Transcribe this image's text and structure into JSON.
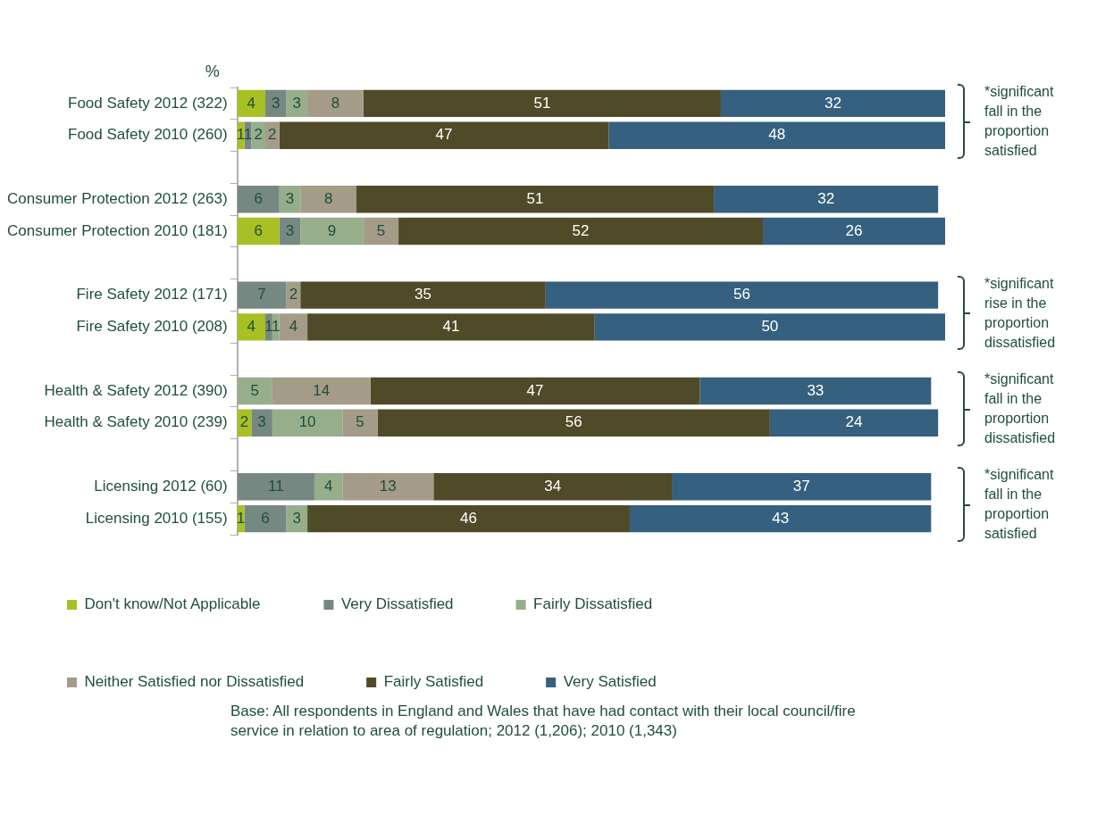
{
  "chart_data": {
    "type": "bar",
    "orientation": "horizontal",
    "stacked": true,
    "xlabel": "%",
    "categories": [
      "Food Safety 2012 (322)",
      "Food Safety 2010 (260)",
      null,
      "Consumer Protection 2012 (263)",
      "Consumer Protection 2010 (181)",
      null,
      "Fire Safety 2012 (171)",
      "Fire Safety 2010 (208)",
      null,
      "Health & Safety 2012 (390)",
      "Health & Safety 2010 (239)",
      null,
      "Licensing 2012 (60)",
      "Licensing 2010 (155)"
    ],
    "series": [
      {
        "name": "Don't know/Not Applicable",
        "color": "#a8c023",
        "values": [
          4,
          1,
          null,
          null,
          6,
          null,
          null,
          4,
          null,
          null,
          2,
          null,
          null,
          1
        ]
      },
      {
        "name": "Very Dissatisfied",
        "color": "#768882",
        "values": [
          3,
          1,
          null,
          6,
          3,
          null,
          7,
          1,
          null,
          null,
          3,
          null,
          11,
          6
        ]
      },
      {
        "name": "Fairly Dissatisfied",
        "color": "#97ae8a",
        "values": [
          3,
          2,
          null,
          3,
          9,
          null,
          null,
          1,
          null,
          5,
          10,
          null,
          4,
          3
        ]
      },
      {
        "name": "Neither Satisfied nor Dissatisfied",
        "color": "#a49c88",
        "values": [
          8,
          2,
          null,
          8,
          5,
          null,
          2,
          4,
          null,
          14,
          5,
          null,
          13,
          null
        ]
      },
      {
        "name": "Fairly Satisfied",
        "color": "#4f4b28",
        "values": [
          51,
          47,
          null,
          51,
          52,
          null,
          35,
          41,
          null,
          47,
          56,
          null,
          34,
          46
        ]
      },
      {
        "name": "Very Satisfied",
        "color": "#35607f",
        "values": [
          32,
          48,
          null,
          32,
          26,
          null,
          56,
          50,
          null,
          33,
          24,
          null,
          37,
          43
        ]
      }
    ],
    "data_labels": true,
    "legend": "bottom",
    "annotations": [
      "*significant fall in the proportion satisfied",
      "*significant rise in the proportion dissatisfied",
      "*significant fall in the proportion dissatisfied",
      "*significant fall in the proportion satisfied",
      "Base: All respondents in England and Wales that have had contact with their local council/fire service in relation to area of regulation; 2012 (1,206); 2010 (1,343)"
    ]
  }
}
